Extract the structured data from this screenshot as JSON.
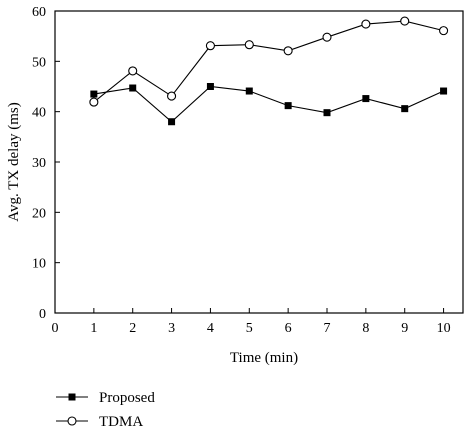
{
  "chart_data": {
    "type": "line",
    "xlabel": "Time (min)",
    "ylabel": "Avg. TX delay (ms)",
    "xlim": [
      0,
      10.5
    ],
    "ylim": [
      0,
      60
    ],
    "x_ticks": [
      0,
      1,
      2,
      3,
      4,
      5,
      6,
      7,
      8,
      9,
      10
    ],
    "y_ticks": [
      0,
      10,
      20,
      30,
      40,
      50,
      60
    ],
    "grid": false,
    "legend_position": "bottom-left",
    "x": [
      1,
      2,
      3,
      4,
      5,
      6,
      7,
      8,
      9,
      10
    ],
    "series": [
      {
        "name": "Proposed",
        "marker": "filled-square",
        "color": "#000000",
        "values": [
          43.5,
          44.7,
          38.0,
          45.0,
          44.1,
          41.2,
          39.8,
          42.6,
          40.6,
          44.1
        ]
      },
      {
        "name": "TDMA",
        "marker": "open-circle",
        "color": "#000000",
        "values": [
          41.9,
          48.1,
          43.1,
          53.1,
          53.3,
          52.1,
          54.8,
          57.4,
          58.0,
          56.1
        ]
      }
    ]
  }
}
